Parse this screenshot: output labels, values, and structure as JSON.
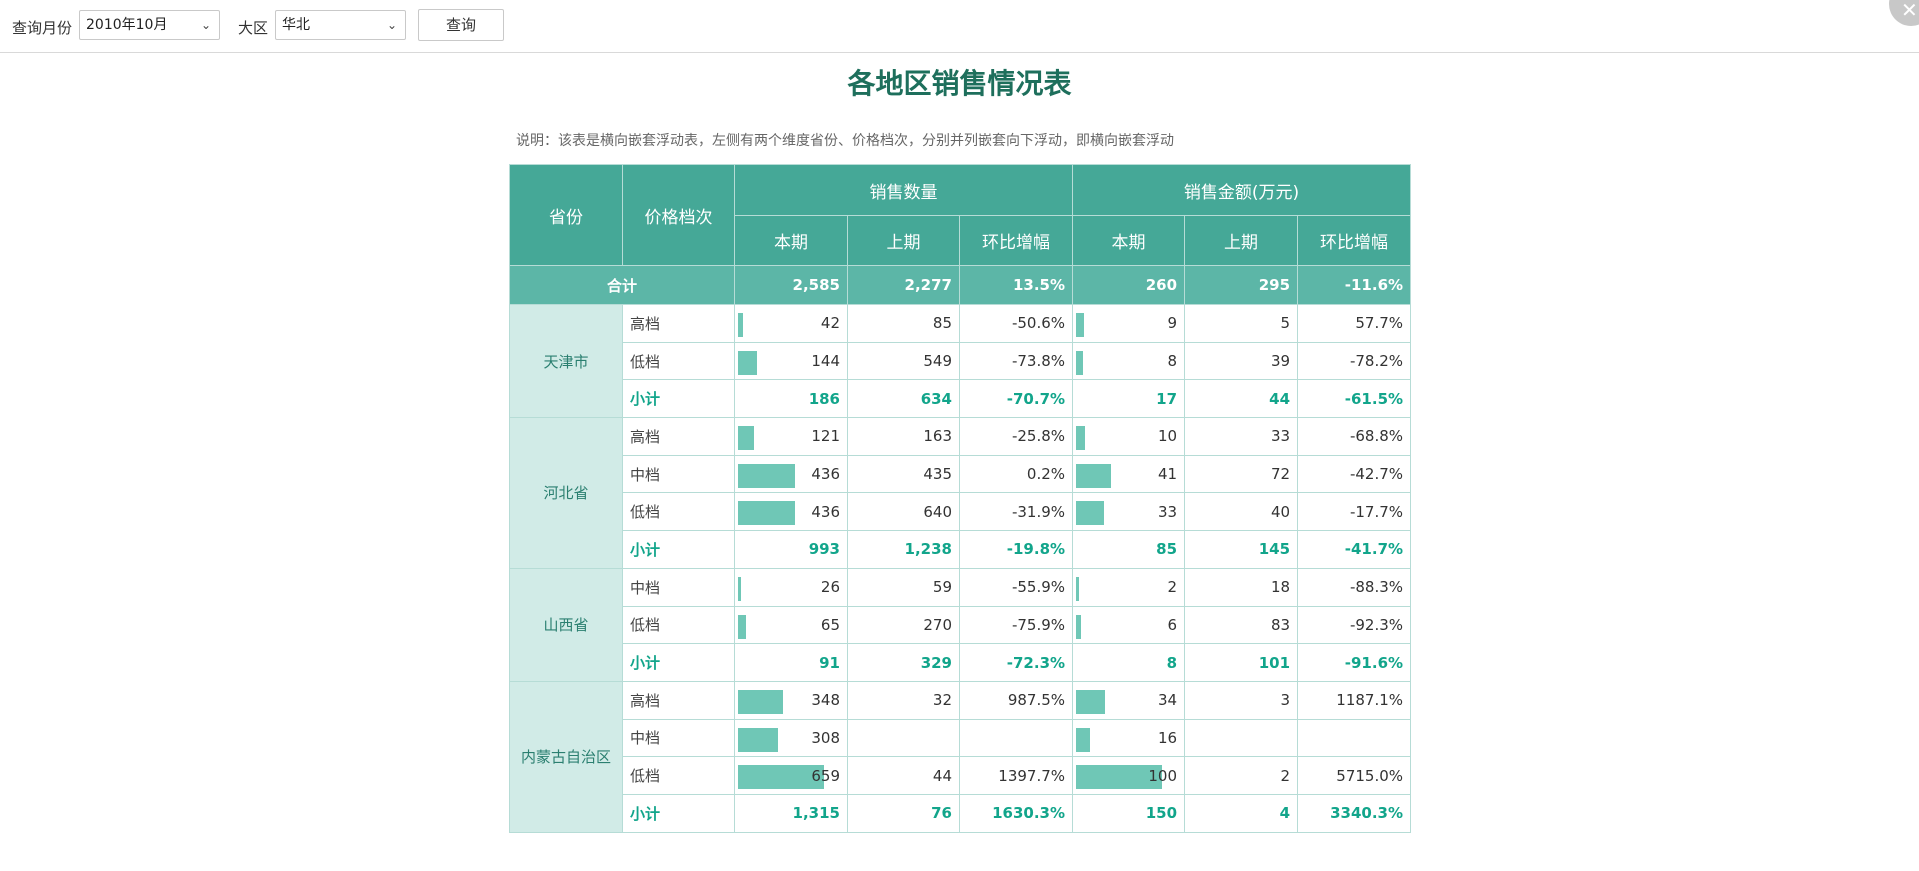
{
  "toolbar": {
    "month_label": "查询月份",
    "month_value": "2010年10月",
    "region_label": "大区",
    "region_value": "华北",
    "query_button": "查询",
    "close_glyph": "✕"
  },
  "report": {
    "title": "各地区销售情况表",
    "description": "说明：该表是横向嵌套浮动表，左侧有两个维度省份、价格档次，分别并列嵌套向下浮动，即横向嵌套浮动",
    "headers": {
      "province": "省份",
      "price_level": "价格档次",
      "qty_group": "销售数量",
      "amount_group": "销售金额(万元)",
      "current": "本期",
      "previous": "上期",
      "change": "环比增幅"
    },
    "total": {
      "label": "合计",
      "qty_current": "2,585",
      "qty_previous": "2,277",
      "qty_change": "13.5%",
      "amt_current": "260",
      "amt_previous": "295",
      "amt_change": "-11.6%"
    },
    "bar_max": {
      "qty": 659,
      "amt": 100
    },
    "provinces": [
      {
        "name": "天津市",
        "rows": [
          {
            "level": "高档",
            "qc": "42",
            "qc_v": 42,
            "qp": "85",
            "qg": "-50.6%",
            "ac": "9",
            "ac_v": 9,
            "ap": "5",
            "ag": "57.7%"
          },
          {
            "level": "低档",
            "qc": "144",
            "qc_v": 144,
            "qp": "549",
            "qg": "-73.8%",
            "ac": "8",
            "ac_v": 8,
            "ap": "39",
            "ag": "-78.2%"
          },
          {
            "level": "小计",
            "sub": true,
            "qc": "186",
            "qp": "634",
            "qg": "-70.7%",
            "ac": "17",
            "ap": "44",
            "ag": "-61.5%"
          }
        ]
      },
      {
        "name": "河北省",
        "rows": [
          {
            "level": "高档",
            "qc": "121",
            "qc_v": 121,
            "qp": "163",
            "qg": "-25.8%",
            "ac": "10",
            "ac_v": 10,
            "ap": "33",
            "ag": "-68.8%"
          },
          {
            "level": "中档",
            "qc": "436",
            "qc_v": 436,
            "qp": "435",
            "qg": "0.2%",
            "ac": "41",
            "ac_v": 41,
            "ap": "72",
            "ag": "-42.7%"
          },
          {
            "level": "低档",
            "qc": "436",
            "qc_v": 436,
            "qp": "640",
            "qg": "-31.9%",
            "ac": "33",
            "ac_v": 33,
            "ap": "40",
            "ag": "-17.7%"
          },
          {
            "level": "小计",
            "sub": true,
            "qc": "993",
            "qp": "1,238",
            "qg": "-19.8%",
            "ac": "85",
            "ap": "145",
            "ag": "-41.7%"
          }
        ]
      },
      {
        "name": "山西省",
        "rows": [
          {
            "level": "中档",
            "qc": "26",
            "qc_v": 26,
            "qp": "59",
            "qg": "-55.9%",
            "ac": "2",
            "ac_v": 2,
            "ap": "18",
            "ag": "-88.3%"
          },
          {
            "level": "低档",
            "qc": "65",
            "qc_v": 65,
            "qp": "270",
            "qg": "-75.9%",
            "ac": "6",
            "ac_v": 6,
            "ap": "83",
            "ag": "-92.3%"
          },
          {
            "level": "小计",
            "sub": true,
            "qc": "91",
            "qp": "329",
            "qg": "-72.3%",
            "ac": "8",
            "ap": "101",
            "ag": "-91.6%"
          }
        ]
      },
      {
        "name": "内蒙古自治区",
        "rows": [
          {
            "level": "高档",
            "qc": "348",
            "qc_v": 348,
            "qp": "32",
            "qg": "987.5%",
            "ac": "34",
            "ac_v": 34,
            "ap": "3",
            "ag": "1187.1%"
          },
          {
            "level": "中档",
            "qc": "308",
            "qc_v": 308,
            "qp": "",
            "qg": "",
            "ac": "16",
            "ac_v": 16,
            "ap": "",
            "ag": ""
          },
          {
            "level": "低档",
            "qc": "659",
            "qc_v": 659,
            "qp": "44",
            "qg": "1397.7%",
            "ac": "100",
            "ac_v": 100,
            "ap": "2",
            "ag": "5715.0%"
          },
          {
            "level": "小计",
            "sub": true,
            "qc": "1,315",
            "qp": "76",
            "qg": "1630.3%",
            "ac": "150",
            "ap": "4",
            "ag": "3340.3%"
          }
        ]
      }
    ]
  }
}
